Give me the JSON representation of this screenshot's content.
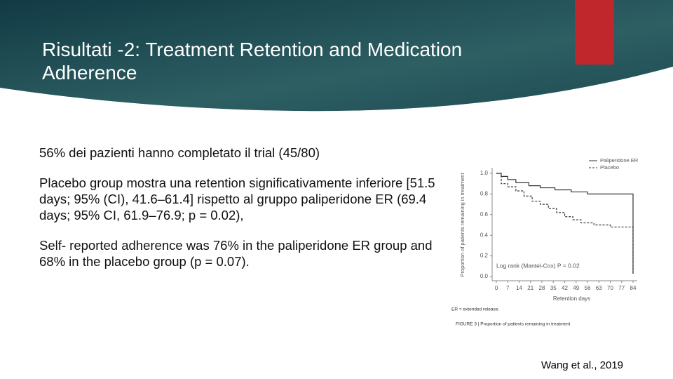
{
  "header": {
    "title": "Risultati -2: Treatment Retention and Medication Adherence"
  },
  "bullets": [
    "56% dei pazienti hanno completato il trial (45/80)",
    "Placebo group mostra una retention significativamente inferiore [51.5 days; 95% (CI), 41.6–61.4] rispetto al gruppo  paliperidone ER (69.4 days; 95% CI, 61.9–76.9; p = 0.02),",
    "Self- reported adherence was 76% in the paliperidone ER group and 68% in the placebo group (p = 0.07)."
  ],
  "chart_data": {
    "type": "line",
    "step": true,
    "xlabel": "Retention days",
    "ylabel": "Proportion of patients remaining in treatment",
    "annotation": "Log rank (Mantel-Cox) P = 0.02",
    "footnote": "ER = extended release.",
    "caption": "FIGURE 3 | Proportion of patients remaining in treatment",
    "xlim": [
      0,
      84
    ],
    "xticks": [
      0,
      7,
      14,
      21,
      28,
      35,
      42,
      49,
      56,
      63,
      70,
      77,
      84
    ],
    "ylim": [
      0,
      1
    ],
    "yticks": [
      {
        "value": 0,
        "label": "0.0"
      },
      0.2,
      0.4,
      0.6,
      0.8,
      {
        "value": 1,
        "label": "1.0"
      }
    ],
    "legend": "top-right",
    "series": [
      {
        "name": "Paliperidone ER",
        "color": "#333333",
        "dashed": false,
        "x": [
          0,
          3,
          3,
          7,
          7,
          12,
          12,
          20,
          20,
          27,
          27,
          36,
          36,
          46,
          46,
          56,
          56,
          84,
          84
        ],
        "values": [
          1,
          1,
          0.97,
          0.97,
          0.94,
          0.94,
          0.91,
          0.91,
          0.88,
          0.88,
          0.86,
          0.86,
          0.84,
          0.84,
          0.82,
          0.82,
          0.8,
          0.8,
          0.03
        ]
      },
      {
        "name": "Placebo",
        "color": "#333333",
        "dashed": true,
        "x": [
          0,
          3,
          3,
          7,
          7,
          12,
          12,
          17,
          17,
          22,
          22,
          27,
          27,
          32,
          32,
          37,
          37,
          42,
          42,
          47,
          47,
          52,
          52,
          60,
          60,
          70,
          70,
          84,
          84
        ],
        "values": [
          1,
          1,
          0.9,
          0.9,
          0.87,
          0.87,
          0.83,
          0.83,
          0.78,
          0.78,
          0.73,
          0.73,
          0.7,
          0.7,
          0.66,
          0.66,
          0.62,
          0.62,
          0.58,
          0.58,
          0.55,
          0.55,
          0.52,
          0.52,
          0.5,
          0.5,
          0.48,
          0.48,
          0.02
        ]
      }
    ]
  },
  "footer": {
    "citation": "Wang et al., 2019"
  }
}
